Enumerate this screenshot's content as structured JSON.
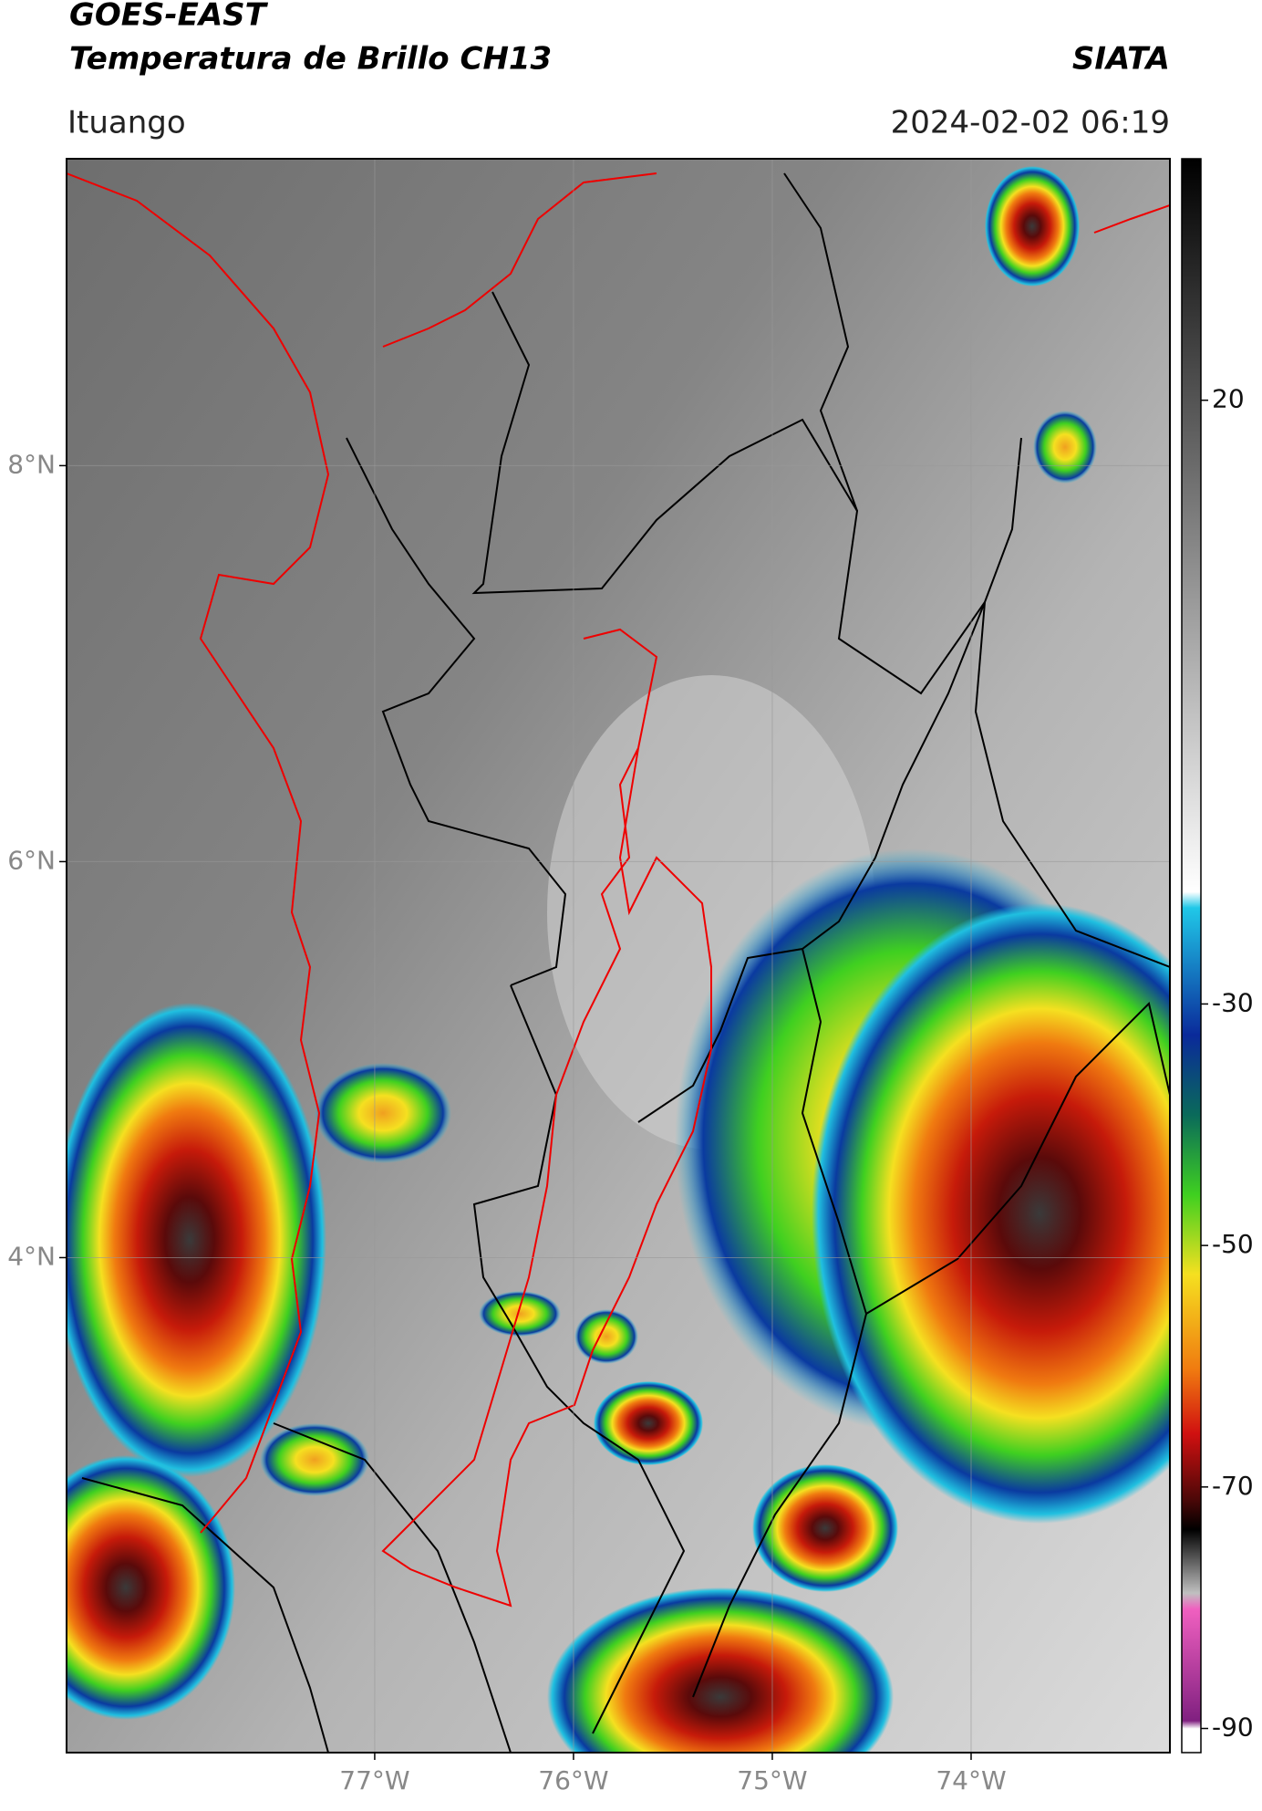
{
  "header": {
    "title": "GOES-EAST",
    "subtitle": "Temperatura de Brillo CH13",
    "org": "SIATA",
    "location": "Ituango",
    "timestamp": "2024-02-02 06:19"
  },
  "map": {
    "xlim": [
      -78.55,
      -73.0
    ],
    "ylim": [
      1.5,
      9.55
    ],
    "xticks": [
      {
        "value": -77,
        "label": "77°W"
      },
      {
        "value": -76,
        "label": "76°W"
      },
      {
        "value": -75,
        "label": "75°W"
      },
      {
        "value": -74,
        "label": "74°W"
      }
    ],
    "yticks": [
      {
        "value": 8,
        "label": "8°N"
      },
      {
        "value": 6,
        "label": "6°N"
      },
      {
        "value": 4,
        "label": "4°N"
      }
    ],
    "grid": true
  },
  "colorbar": {
    "lim": [
      -92,
      40
    ],
    "ticks": [
      20,
      -30,
      -50,
      -70,
      -90
    ]
  }
}
